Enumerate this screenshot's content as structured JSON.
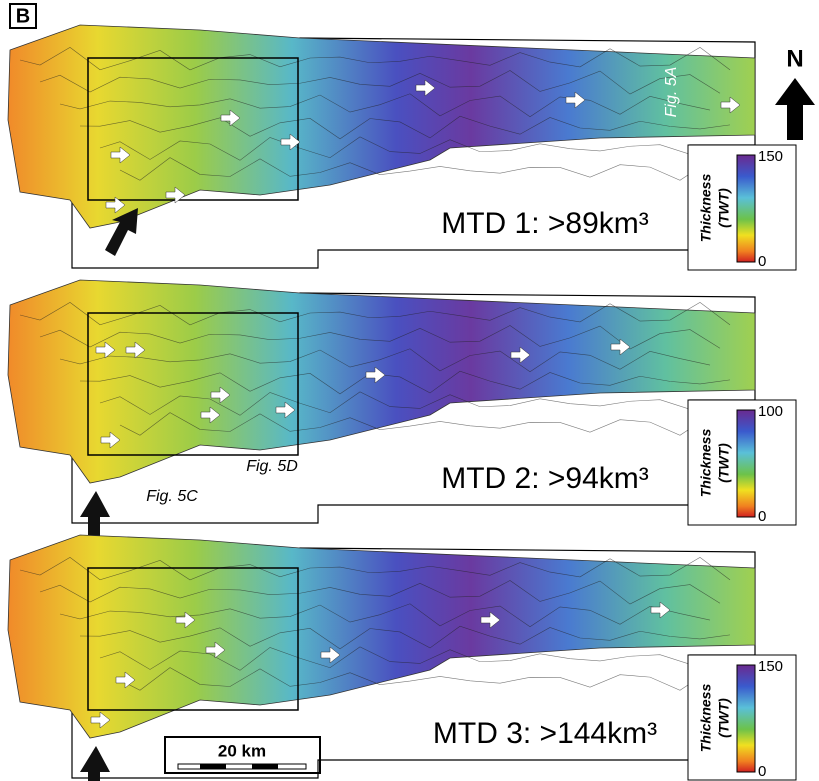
{
  "figure_label": "B",
  "north_label": "N",
  "scale_bar": "20 km",
  "panels": [
    {
      "label": "MTD 1: >89km³",
      "colorbar": {
        "title": "Thickness",
        "unit": "(TWT)",
        "max": 150,
        "min": 0
      },
      "callouts": [
        "Fig. 5A"
      ]
    },
    {
      "label": "MTD 2: >94km³",
      "colorbar": {
        "title": "Thickness",
        "unit": "(TWT)",
        "max": 100,
        "min": 0
      },
      "callouts": [
        "Fig. 5D",
        "Fig. 5C"
      ]
    },
    {
      "label": "MTD 3: >144km³",
      "colorbar": {
        "title": "Thickness",
        "unit": "(TWT)",
        "max": 150,
        "min": 0
      },
      "callouts": []
    }
  ]
}
